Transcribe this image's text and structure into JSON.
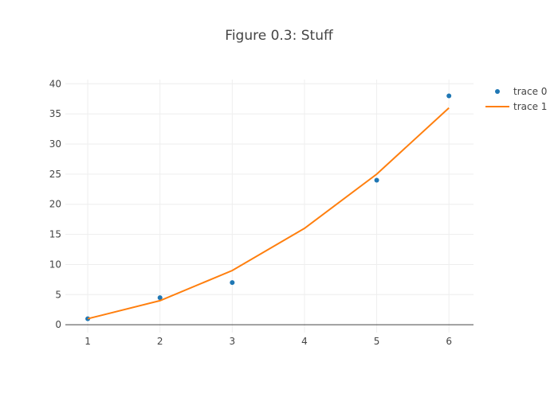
{
  "chart_data": {
    "type": "scatter+line",
    "title": "Figure 0.3: Stuff",
    "xlabel": "",
    "ylabel": "",
    "xlim": [
      0.69,
      6.34
    ],
    "ylim": [
      -1.3,
      40.7
    ],
    "x_ticks": [
      1,
      2,
      3,
      4,
      5,
      6
    ],
    "y_ticks": [
      0,
      5,
      10,
      15,
      20,
      25,
      30,
      35,
      40
    ],
    "grid": true,
    "legend_position": "top-right",
    "series": [
      {
        "name": "trace 0",
        "mode": "markers",
        "color": "#1f77b4",
        "x": [
          1,
          2,
          3,
          5,
          6
        ],
        "y": [
          1,
          4.5,
          7,
          24,
          38
        ]
      },
      {
        "name": "trace 1",
        "mode": "lines",
        "color": "#ff7f0e",
        "x": [
          1,
          2,
          3,
          4,
          5,
          6
        ],
        "y": [
          1,
          4,
          9,
          16,
          25,
          36
        ]
      }
    ]
  }
}
